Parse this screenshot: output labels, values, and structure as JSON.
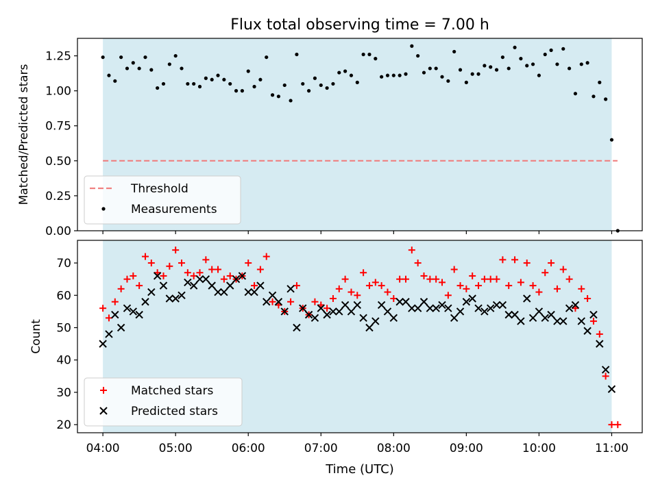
{
  "title": "Flux total observing time = 7.00 h",
  "colors": {
    "shade": "#add8e6",
    "threshold": "#f08080",
    "matched": "#ff0000",
    "predicted": "#000000",
    "measurement": "#000000"
  },
  "chart_data": [
    {
      "type": "scatter",
      "ylabel": "Matched/Predicted stars",
      "ylim": [
        0.0,
        1.375
      ],
      "xlim": [
        3.65,
        11.42
      ],
      "yticks": [
        0.0,
        0.25,
        0.5,
        0.75,
        1.0,
        1.25
      ],
      "ytick_labels": [
        "0.00",
        "0.25",
        "0.50",
        "0.75",
        "1.00",
        "1.25"
      ],
      "shaded_span": [
        4.0,
        11.0
      ],
      "threshold": {
        "name": "Threshold",
        "value": 0.5,
        "x_range": [
          4.0,
          11.08
        ]
      },
      "legend": {
        "placement": "lower-left",
        "entries": [
          "Threshold",
          "Measurements"
        ]
      },
      "series": [
        {
          "name": "Measurements",
          "x": [
            4.0,
            4.0833,
            4.1667,
            4.25,
            4.3333,
            4.4167,
            4.5,
            4.5833,
            4.6667,
            4.75,
            4.8333,
            4.9167,
            5.0,
            5.0833,
            5.1667,
            5.25,
            5.3333,
            5.4167,
            5.5,
            5.5833,
            5.6667,
            5.75,
            5.8333,
            5.9167,
            6.0,
            6.0833,
            6.1667,
            6.25,
            6.3333,
            6.4167,
            6.5,
            6.5833,
            6.6667,
            6.75,
            6.8333,
            6.9167,
            7.0,
            7.0833,
            7.1667,
            7.25,
            7.3333,
            7.4167,
            7.5,
            7.5833,
            7.6667,
            7.75,
            7.8333,
            7.9167,
            8.0,
            8.0833,
            8.1667,
            8.25,
            8.3333,
            8.4167,
            8.5,
            8.5833,
            8.6667,
            8.75,
            8.8333,
            8.9167,
            9.0,
            9.0833,
            9.1667,
            9.25,
            9.3333,
            9.4167,
            9.5,
            9.5833,
            9.6667,
            9.75,
            9.8333,
            9.9167,
            10.0,
            10.0833,
            10.1667,
            10.25,
            10.3333,
            10.4167,
            10.5,
            10.5833,
            10.6667,
            10.75,
            10.8333,
            10.9167,
            11.0,
            11.0833
          ],
          "y": [
            1.24,
            1.11,
            1.07,
            1.24,
            1.16,
            1.2,
            1.16,
            1.24,
            1.15,
            1.02,
            1.05,
            1.19,
            1.25,
            1.16,
            1.05,
            1.05,
            1.03,
            1.09,
            1.08,
            1.11,
            1.08,
            1.05,
            1.0,
            1.0,
            1.14,
            1.03,
            1.08,
            1.24,
            0.97,
            0.96,
            1.04,
            0.93,
            1.26,
            1.05,
            1.0,
            1.09,
            1.04,
            1.02,
            1.05,
            1.13,
            1.14,
            1.11,
            1.06,
            1.26,
            1.26,
            1.23,
            1.1,
            1.11,
            1.11,
            1.11,
            1.12,
            1.32,
            1.25,
            1.13,
            1.16,
            1.16,
            1.1,
            1.07,
            1.28,
            1.15,
            1.06,
            1.12,
            1.12,
            1.18,
            1.17,
            1.15,
            1.24,
            1.16,
            1.31,
            1.23,
            1.18,
            1.19,
            1.11,
            1.26,
            1.29,
            1.19,
            1.3,
            1.16,
            0.98,
            1.19,
            1.2,
            0.96,
            1.06,
            0.94,
            0.65,
            0.0
          ]
        }
      ]
    },
    {
      "type": "scatter",
      "ylabel": "Count",
      "xlabel": "Time (UTC)",
      "ylim": [
        17.5,
        77.0
      ],
      "xlim": [
        3.65,
        11.42
      ],
      "yticks": [
        20,
        30,
        40,
        50,
        60,
        70
      ],
      "ytick_labels": [
        "20",
        "30",
        "40",
        "50",
        "60",
        "70"
      ],
      "xticks": [
        4,
        5,
        6,
        7,
        8,
        9,
        10,
        11
      ],
      "xtick_labels": [
        "04:00",
        "05:00",
        "06:00",
        "07:00",
        "08:00",
        "09:00",
        "10:00",
        "11:00"
      ],
      "shaded_span": [
        4.0,
        11.0
      ],
      "legend": {
        "placement": "lower-left",
        "entries": [
          "Matched stars",
          "Predicted stars"
        ]
      },
      "series": [
        {
          "name": "Matched stars",
          "marker": "plus",
          "x": [
            4.0,
            4.0833,
            4.1667,
            4.25,
            4.3333,
            4.4167,
            4.5,
            4.5833,
            4.6667,
            4.75,
            4.8333,
            4.9167,
            5.0,
            5.0833,
            5.1667,
            5.25,
            5.3333,
            5.4167,
            5.5,
            5.5833,
            5.6667,
            5.75,
            5.8333,
            5.9167,
            6.0,
            6.0833,
            6.1667,
            6.25,
            6.3333,
            6.4167,
            6.5,
            6.5833,
            6.6667,
            6.75,
            6.8333,
            6.9167,
            7.0,
            7.0833,
            7.1667,
            7.25,
            7.3333,
            7.4167,
            7.5,
            7.5833,
            7.6667,
            7.75,
            7.8333,
            7.9167,
            8.0,
            8.0833,
            8.1667,
            8.25,
            8.3333,
            8.4167,
            8.5,
            8.5833,
            8.6667,
            8.75,
            8.8333,
            8.9167,
            9.0,
            9.0833,
            9.1667,
            9.25,
            9.3333,
            9.4167,
            9.5,
            9.5833,
            9.6667,
            9.75,
            9.8333,
            9.9167,
            10.0,
            10.0833,
            10.1667,
            10.25,
            10.3333,
            10.4167,
            10.5,
            10.5833,
            10.6667,
            10.75,
            10.8333,
            10.9167,
            11.0,
            11.0833
          ],
          "y": [
            56,
            53,
            58,
            62,
            65,
            66,
            63,
            72,
            70,
            67,
            66,
            69,
            74,
            70,
            67,
            66,
            67,
            71,
            68,
            68,
            65,
            66,
            65,
            66,
            70,
            63,
            68,
            72,
            58,
            57,
            55,
            58,
            63,
            56,
            54,
            58,
            57,
            56,
            59,
            62,
            65,
            61,
            60,
            67,
            63,
            64,
            63,
            61,
            59,
            65,
            65,
            74,
            70,
            66,
            65,
            65,
            64,
            60,
            68,
            63,
            62,
            66,
            63,
            65,
            65,
            65,
            71,
            63,
            71,
            64,
            70,
            63,
            61,
            67,
            70,
            62,
            68,
            65,
            56,
            62,
            59,
            52,
            48,
            35,
            20,
            20
          ]
        },
        {
          "name": "Predicted stars",
          "marker": "x",
          "x": [
            4.0,
            4.0833,
            4.1667,
            4.25,
            4.3333,
            4.4167,
            4.5,
            4.5833,
            4.6667,
            4.75,
            4.8333,
            4.9167,
            5.0,
            5.0833,
            5.1667,
            5.25,
            5.3333,
            5.4167,
            5.5,
            5.5833,
            5.6667,
            5.75,
            5.8333,
            5.9167,
            6.0,
            6.0833,
            6.1667,
            6.25,
            6.3333,
            6.4167,
            6.5,
            6.5833,
            6.6667,
            6.75,
            6.8333,
            6.9167,
            7.0,
            7.0833,
            7.1667,
            7.25,
            7.3333,
            7.4167,
            7.5,
            7.5833,
            7.6667,
            7.75,
            7.8333,
            7.9167,
            8.0,
            8.0833,
            8.1667,
            8.25,
            8.3333,
            8.4167,
            8.5,
            8.5833,
            8.6667,
            8.75,
            8.8333,
            8.9167,
            9.0,
            9.0833,
            9.1667,
            9.25,
            9.3333,
            9.4167,
            9.5,
            9.5833,
            9.6667,
            9.75,
            9.8333,
            9.9167,
            10.0,
            10.0833,
            10.1667,
            10.25,
            10.3333,
            10.4167,
            10.5,
            10.5833,
            10.6667,
            10.75,
            10.8333,
            10.9167,
            11.0
          ],
          "y": [
            45,
            48,
            54,
            50,
            56,
            55,
            54,
            58,
            61,
            66,
            63,
            59,
            59,
            60,
            64,
            63,
            65,
            65,
            63,
            61,
            61,
            63,
            65,
            66,
            61,
            61,
            63,
            58,
            60,
            58,
            55,
            62,
            50,
            56,
            54,
            53,
            56,
            54,
            55,
            55,
            57,
            55,
            57,
            53,
            50,
            52,
            57,
            55,
            53,
            58,
            58,
            56,
            56,
            58,
            56,
            56,
            57,
            56,
            53,
            55,
            58,
            59,
            56,
            55,
            56,
            57,
            57,
            54,
            54,
            52,
            59,
            53,
            55,
            53,
            54,
            52,
            52,
            56,
            57,
            52,
            49,
            54,
            45,
            37,
            31
          ]
        }
      ]
    }
  ]
}
